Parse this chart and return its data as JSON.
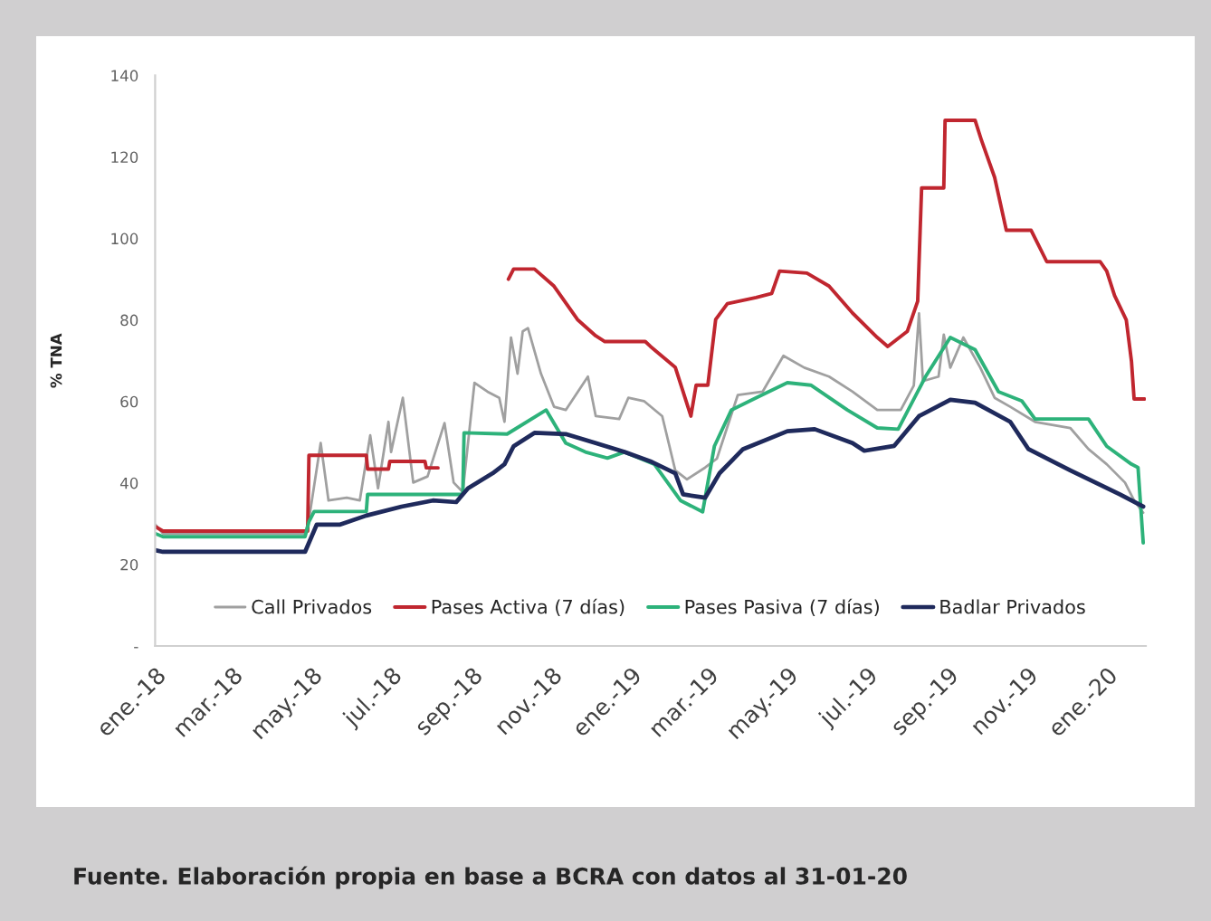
{
  "chart_data": {
    "type": "line",
    "ylabel": "% TNA",
    "xlim": [
      "2018-01-01",
      "2020-01-31"
    ],
    "ylim": [
      0,
      140
    ],
    "xticks": [
      {
        "value": "2018-01-01",
        "label": "ene.-18"
      },
      {
        "value": "2018-03-01",
        "label": "mar.-18"
      },
      {
        "value": "2018-05-01",
        "label": "may.-18"
      },
      {
        "value": "2018-07-01",
        "label": "jul.-18"
      },
      {
        "value": "2018-09-01",
        "label": "sep.-18"
      },
      {
        "value": "2018-11-01",
        "label": "nov.-18"
      },
      {
        "value": "2019-01-01",
        "label": "ene.-19"
      },
      {
        "value": "2019-03-01",
        "label": "mar.-19"
      },
      {
        "value": "2019-05-01",
        "label": "may.-19"
      },
      {
        "value": "2019-07-01",
        "label": "jul.-19"
      },
      {
        "value": "2019-09-01",
        "label": "sep.-19"
      },
      {
        "value": "2019-11-01",
        "label": "nov.-19"
      },
      {
        "value": "2020-01-01",
        "label": "ene.-20"
      }
    ],
    "yticks": [
      {
        "value": 0,
        "label": "-"
      },
      20,
      40,
      60,
      80,
      100,
      120,
      140
    ],
    "grid": false,
    "legend": "bottom",
    "annotations": [
      "Fuente. Elaboración propia en base a BCRA con datos al 31-01-20"
    ],
    "series": [
      {
        "name": "Call Privados",
        "color": "#a0a0a0",
        "x": [
          "2018-01-01",
          "2018-01-07",
          "2018-04-26",
          "2018-04-29",
          "2018-05-08",
          "2018-05-14",
          "2018-05-28",
          "2018-06-07",
          "2018-06-15",
          "2018-06-21",
          "2018-06-29",
          "2018-07-01",
          "2018-07-10",
          "2018-07-18",
          "2018-07-29",
          "2018-08-11",
          "2018-08-18",
          "2018-08-25",
          "2018-09-03",
          "2018-09-13",
          "2018-09-22",
          "2018-09-26",
          "2018-10-01",
          "2018-10-06",
          "2018-10-10",
          "2018-10-14",
          "2018-10-24",
          "2018-11-03",
          "2018-11-12",
          "2018-11-29",
          "2018-12-05",
          "2018-12-23",
          "2018-12-30",
          "2019-01-11",
          "2019-01-25",
          "2019-02-04",
          "2019-02-13",
          "2019-02-27",
          "2019-03-08",
          "2019-03-24",
          "2019-04-12",
          "2019-04-28",
          "2019-05-14",
          "2019-06-02",
          "2019-06-20",
          "2019-07-09",
          "2019-07-27",
          "2019-08-06",
          "2019-08-10",
          "2019-08-13",
          "2019-08-25",
          "2019-08-29",
          "2019-09-03",
          "2019-09-13",
          "2019-09-26",
          "2019-10-07",
          "2019-10-19",
          "2019-11-07",
          "2019-12-04",
          "2019-12-18",
          "2020-01-01",
          "2020-01-15",
          "2020-01-22",
          "2020-01-29"
        ],
        "values": [
          29.8,
          27.6,
          27.6,
          31,
          49.8,
          35.7,
          36.4,
          35.7,
          51.7,
          38.7,
          55,
          47.6,
          60.9,
          40.1,
          41.6,
          54.7,
          40.1,
          37.8,
          64.6,
          62.4,
          60.9,
          55,
          75.7,
          66.8,
          77.2,
          78,
          66.8,
          58.7,
          57.9,
          66.1,
          56.4,
          55.7,
          60.9,
          60.1,
          56.4,
          43.1,
          40.9,
          43.8,
          46,
          61.6,
          62.4,
          71.2,
          68.3,
          66.1,
          62.4,
          57.9,
          57.9,
          63.9,
          81.6,
          65,
          66.1,
          76.4,
          68.3,
          75.7,
          68.3,
          60.9,
          58.7,
          55,
          53.5,
          48.3,
          44.6,
          40.1,
          35.7,
          32.7
        ]
      },
      {
        "name": "Pases Activa (7 días)",
        "color": "#c0262f",
        "x": [
          "2018-01-01",
          "2018-01-07",
          "2018-04-28",
          "2018-04-29",
          "2018-06-12",
          "2018-06-13",
          "2018-06-29",
          "2018-06-30",
          "2018-07-27",
          "2018-07-28",
          "2018-08-06",
          "2018-08-20",
          "2018-09-29",
          "2018-10-03",
          "2018-10-19",
          "2018-11-03",
          "2018-11-21",
          "2018-12-05",
          "2018-12-12",
          "2019-01-12",
          "2019-01-16",
          "2019-02-04",
          "2019-02-16",
          "2019-02-20",
          "2019-03-01",
          "2019-03-07",
          "2019-03-16",
          "2019-04-07",
          "2019-04-19",
          "2019-04-25",
          "2019-05-16",
          "2019-06-02",
          "2019-06-20",
          "2019-07-09",
          "2019-07-17",
          "2019-08-01",
          "2019-08-09",
          "2019-08-12",
          "2019-08-29",
          "2019-08-30",
          "2019-09-22",
          "2019-09-27",
          "2019-10-07",
          "2019-10-16",
          "2019-11-04",
          "2019-11-16",
          "2019-12-27",
          "2020-01-01",
          "2020-01-07",
          "2020-01-16",
          "2020-01-20",
          "2020-01-22",
          "2020-01-30"
        ],
        "values": [
          29.3,
          28.2,
          28.2,
          46.8,
          46.8,
          43.4,
          43.4,
          45.3,
          45.3,
          43.7,
          43.7,
          null,
          90,
          92.5,
          92.5,
          88.3,
          80.1,
          76.1,
          74.7,
          74.7,
          73.5,
          68.4,
          56.4,
          64,
          64,
          80.1,
          84,
          85.5,
          86.5,
          92,
          91.5,
          88.3,
          81.7,
          75.7,
          73.5,
          77.2,
          84.6,
          112.4,
          112.4,
          129,
          129,
          124,
          115,
          102,
          102,
          94.3,
          94.3,
          92,
          86,
          80,
          69.8,
          60.6,
          60.6
        ]
      },
      {
        "name": "Pases Pasiva (7 días)",
        "color": "#2db27a",
        "x": [
          "2018-01-01",
          "2018-01-07",
          "2018-04-26",
          "2018-04-29",
          "2018-05-03",
          "2018-06-12",
          "2018-06-13",
          "2018-08-25",
          "2018-08-26",
          "2018-09-28",
          "2018-10-28",
          "2018-11-12",
          "2018-11-27",
          "2018-12-14",
          "2018-12-27",
          "2019-01-19",
          "2019-02-08",
          "2019-02-25",
          "2019-03-06",
          "2019-03-19",
          "2019-04-07",
          "2019-05-01",
          "2019-05-19",
          "2019-06-16",
          "2019-07-09",
          "2019-07-25",
          "2019-08-15",
          "2019-09-03",
          "2019-09-22",
          "2019-10-10",
          "2019-10-28",
          "2019-11-07",
          "2019-12-18",
          "2020-01-01",
          "2020-01-20",
          "2020-01-25",
          "2020-01-29"
        ],
        "values": [
          27.6,
          26.8,
          26.8,
          30.5,
          33,
          33,
          37.2,
          37.2,
          52.3,
          52,
          57.9,
          49.8,
          47.6,
          46.1,
          47.6,
          44.6,
          35.7,
          32.9,
          49,
          57.9,
          60.9,
          64.6,
          64,
          57.9,
          53.5,
          53.2,
          66.1,
          75.7,
          72.7,
          62.4,
          60.1,
          55.7,
          55.7,
          49,
          44.6,
          43.8,
          25.3
        ]
      },
      {
        "name": "Badlar Privados",
        "color": "#1f2a5c",
        "x": [
          "2018-01-01",
          "2018-01-07",
          "2018-04-26",
          "2018-05-05",
          "2018-05-23",
          "2018-06-12",
          "2018-07-09",
          "2018-08-02",
          "2018-08-20",
          "2018-08-29",
          "2018-09-17",
          "2018-09-26",
          "2018-10-03",
          "2018-10-19",
          "2018-11-12",
          "2018-12-05",
          "2018-12-27",
          "2019-01-16",
          "2019-02-04",
          "2019-02-10",
          "2019-02-27",
          "2019-03-10",
          "2019-03-28",
          "2019-05-01",
          "2019-05-22",
          "2019-06-20",
          "2019-06-29",
          "2019-07-22",
          "2019-08-10",
          "2019-09-03",
          "2019-09-22",
          "2019-10-19",
          "2019-11-02",
          "2019-12-04",
          "2020-01-11",
          "2020-01-29"
        ],
        "values": [
          23.5,
          23.1,
          23.1,
          29.8,
          29.8,
          32,
          34.2,
          35.7,
          35.3,
          38.7,
          42.4,
          44.6,
          49,
          52.3,
          52,
          49.8,
          47.6,
          45.3,
          42.4,
          37.2,
          36.4,
          42.4,
          48.3,
          52.7,
          53.2,
          49.8,
          47.9,
          49.1,
          56.4,
          60.4,
          59.7,
          55,
          48.3,
          43.1,
          37.2,
          34.2
        ]
      }
    ]
  }
}
